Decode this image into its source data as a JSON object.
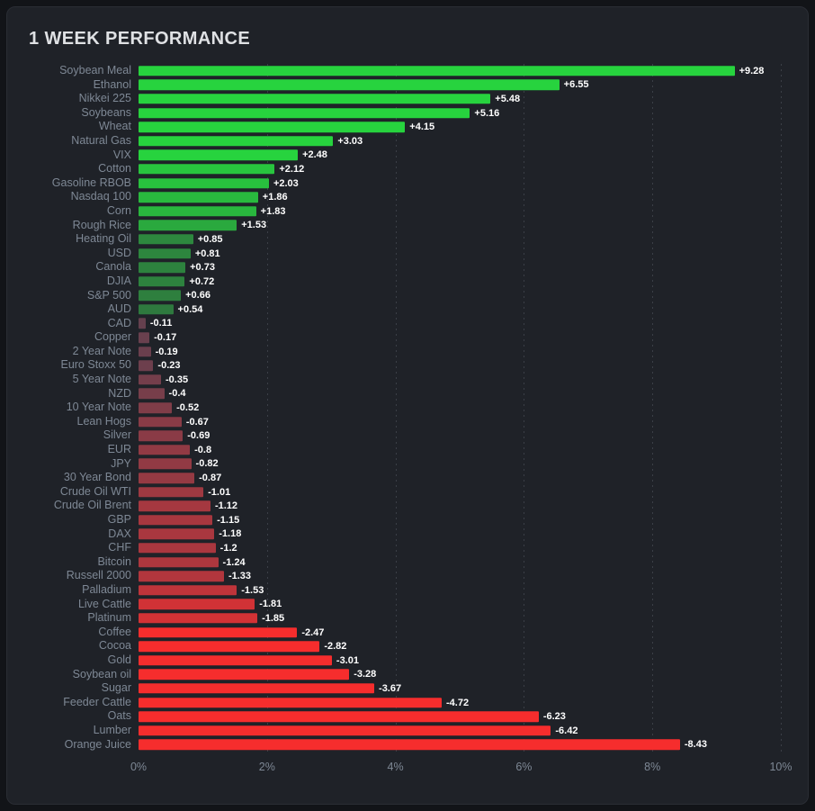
{
  "title": "1 WEEK PERFORMANCE",
  "chart_data": {
    "type": "bar",
    "orientation": "horizontal",
    "title": "1 WEEK PERFORMANCE",
    "xlim": [
      0,
      10
    ],
    "x_ticks": [
      "0%",
      "2%",
      "4%",
      "6%",
      "8%",
      "10%"
    ],
    "grid": "dotted-vertical",
    "categories": [
      "Soybean Meal",
      "Ethanol",
      "Nikkei 225",
      "Soybeans",
      "Wheat",
      "Natural Gas",
      "VIX",
      "Cotton",
      "Gasoline RBOB",
      "Nasdaq 100",
      "Corn",
      "Rough Rice",
      "Heating Oil",
      "USD",
      "Canola",
      "DJIA",
      "S&P 500",
      "AUD",
      "CAD",
      "Copper",
      "2 Year Note",
      "Euro Stoxx 50",
      "5 Year Note",
      "NZD",
      "10 Year Note",
      "Lean Hogs",
      "Silver",
      "EUR",
      "JPY",
      "30 Year Bond",
      "Crude Oil WTI",
      "Crude Oil Brent",
      "GBP",
      "DAX",
      "CHF",
      "Bitcoin",
      "Russell 2000",
      "Palladium",
      "Live Cattle",
      "Platinum",
      "Coffee",
      "Cocoa",
      "Gold",
      "Soybean oil",
      "Sugar",
      "Feeder Cattle",
      "Oats",
      "Lumber",
      "Orange Juice"
    ],
    "values": [
      9.28,
      6.55,
      5.48,
      5.16,
      4.15,
      3.03,
      2.48,
      2.12,
      2.03,
      1.86,
      1.83,
      1.53,
      0.85,
      0.81,
      0.73,
      0.72,
      0.66,
      0.54,
      -0.11,
      -0.17,
      -0.19,
      -0.23,
      -0.35,
      -0.4,
      -0.52,
      -0.67,
      -0.69,
      -0.8,
      -0.82,
      -0.87,
      -1.01,
      -1.12,
      -1.15,
      -1.18,
      -1.2,
      -1.24,
      -1.33,
      -1.53,
      -1.81,
      -1.85,
      -2.47,
      -2.82,
      -3.01,
      -3.28,
      -3.67,
      -4.72,
      -6.23,
      -6.42,
      -8.43
    ],
    "value_labels": [
      "+9.28",
      "+6.55",
      "+5.48",
      "+5.16",
      "+4.15",
      "+3.03",
      "+2.48",
      "+2.12",
      "+2.03",
      "+1.86",
      "+1.83",
      "+1.53",
      "+0.85",
      "+0.81",
      "+0.73",
      "+0.72",
      "+0.66",
      "+0.54",
      "-0.11",
      "-0.17",
      "-0.19",
      "-0.23",
      "-0.35",
      "-0.4",
      "-0.52",
      "-0.67",
      "-0.69",
      "-0.8",
      "-0.82",
      "-0.87",
      "-1.01",
      "-1.12",
      "-1.15",
      "-1.18",
      "-1.2",
      "-1.24",
      "-1.33",
      "-1.53",
      "-1.81",
      "-1.85",
      "-2.47",
      "-2.82",
      "-3.01",
      "-3.28",
      "-3.67",
      "-4.72",
      "-6.23",
      "-6.42",
      "-8.43"
    ],
    "colors": {
      "positive_bright": "#27d33e",
      "positive_dark": "#305f3e",
      "negative_bright": "#f62d2d",
      "negative_dark": "#5e4150"
    }
  }
}
